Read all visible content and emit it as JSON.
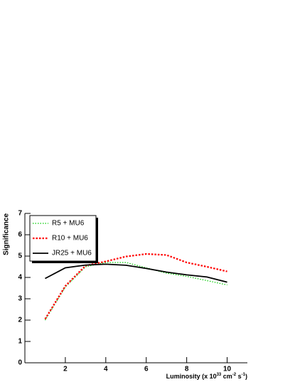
{
  "chart_data": {
    "type": "line",
    "ylabel": "Significance",
    "xlabel": [
      "Luminosity (x 10",
      "33",
      " cm",
      "-2",
      " s",
      "-1",
      ")"
    ],
    "x": [
      1,
      2,
      3,
      4,
      5,
      6,
      7,
      8,
      9,
      10
    ],
    "series": [
      {
        "name": "R5 + MU6",
        "color": "#00cc00",
        "dash": "1.5 2",
        "width": 1.2,
        "values": [
          2.0,
          3.55,
          4.5,
          4.7,
          4.7,
          4.45,
          4.2,
          4.05,
          3.85,
          3.65
        ]
      },
      {
        "name": "R10 + MU6",
        "color": "#ff0000",
        "dash": "2.5 2",
        "width": 2.2,
        "values": [
          2.05,
          3.6,
          4.55,
          4.75,
          4.98,
          5.1,
          5.05,
          4.7,
          4.5,
          4.28
        ]
      },
      {
        "name": "JR25 + MU6",
        "color": "#000000",
        "dash": "none",
        "width": 1.8,
        "values": [
          3.95,
          4.45,
          4.58,
          4.62,
          4.57,
          4.42,
          4.25,
          4.12,
          4.02,
          3.78
        ]
      }
    ],
    "xlim": [
      0,
      11
    ],
    "ylim": [
      0,
      7
    ],
    "xticks": [
      2,
      4,
      6,
      8,
      10
    ],
    "yticks": [
      0,
      1,
      2,
      3,
      4,
      5,
      6,
      7
    ],
    "legend": "upper left"
  }
}
